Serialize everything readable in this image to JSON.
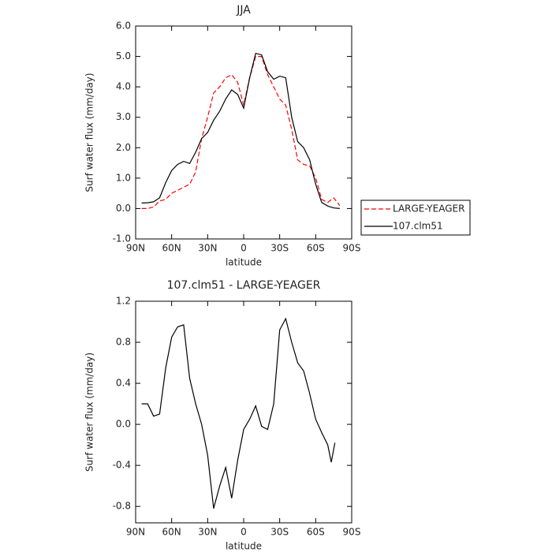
{
  "chart_data": [
    {
      "type": "line",
      "title": "JJA",
      "x_label": "latitude",
      "y_label": "Surf water flux (mm/day)",
      "x": [
        85,
        80,
        75,
        70,
        65,
        60,
        55,
        50,
        45,
        40,
        35,
        30,
        25,
        20,
        15,
        10,
        5,
        0,
        -5,
        -10,
        -15,
        -20,
        -25,
        -30,
        -35,
        -40,
        -45,
        -50,
        -55,
        -60,
        -65,
        -70,
        -75,
        -80
      ],
      "series": [
        {
          "name": "LARGE-YEAGER",
          "color": "#ff0000",
          "line_style": "dashed",
          "values": [
            0.0,
            0.0,
            0.05,
            0.25,
            0.3,
            0.5,
            0.6,
            0.7,
            0.8,
            1.2,
            2.3,
            3.0,
            3.8,
            4.0,
            4.3,
            4.4,
            4.15,
            3.4,
            4.3,
            5.0,
            5.0,
            4.4,
            4.0,
            3.6,
            3.4,
            2.6,
            1.6,
            1.45,
            1.4,
            1.0,
            0.3,
            0.2,
            0.35,
            0.1
          ]
        },
        {
          "name": "107.clm51",
          "color": "#000000",
          "line_style": "solid",
          "values": [
            0.18,
            0.19,
            0.22,
            0.35,
            0.85,
            1.25,
            1.45,
            1.55,
            1.48,
            1.85,
            2.3,
            2.5,
            2.9,
            3.2,
            3.6,
            3.9,
            3.75,
            3.3,
            4.3,
            5.1,
            5.05,
            4.5,
            4.25,
            4.35,
            4.3,
            3.0,
            2.2,
            2.0,
            1.6,
            0.8,
            0.2,
            0.08,
            0.02,
            0.0
          ]
        }
      ],
      "xlim": [
        90,
        -90
      ],
      "xticks": [
        {
          "value": 90,
          "label": "90N"
        },
        {
          "value": 60,
          "label": "60N"
        },
        {
          "value": 30,
          "label": "30N"
        },
        0,
        {
          "value": -30,
          "label": "30S"
        },
        {
          "value": -60,
          "label": "60S"
        },
        {
          "value": -90,
          "label": "90S"
        }
      ],
      "ylim": [
        -1,
        6
      ],
      "yticks": [
        {
          "value": -1,
          "label": "-1.0"
        },
        {
          "value": 0,
          "label": "0.0"
        },
        {
          "value": 1,
          "label": "1.0"
        },
        {
          "value": 2,
          "label": "2.0"
        },
        {
          "value": 3,
          "label": "3.0"
        },
        {
          "value": 4,
          "label": "4.0"
        },
        {
          "value": 5,
          "label": "5.0"
        },
        {
          "value": 6,
          "label": "6.0"
        }
      ],
      "grid": false,
      "legend": "right"
    },
    {
      "type": "line",
      "title": "107.clm51 - LARGE-YEAGER",
      "x_label": "latitude",
      "y_label": "Surf water flux (mm/day)",
      "x": [
        85,
        80,
        75,
        70,
        65,
        60,
        55,
        50,
        45,
        40,
        35,
        30,
        25,
        20,
        15,
        10,
        5,
        0,
        -5,
        -10,
        -15,
        -20,
        -25,
        -30,
        -35,
        -40,
        -45,
        -50,
        -55,
        -60,
        -65,
        -70,
        -73,
        -76
      ],
      "color": "#000000",
      "values": [
        0.2,
        0.2,
        0.08,
        0.1,
        0.55,
        0.85,
        0.95,
        0.97,
        0.45,
        0.2,
        0.0,
        -0.3,
        -0.82,
        -0.6,
        -0.42,
        -0.72,
        -0.35,
        -0.05,
        0.05,
        0.18,
        -0.02,
        -0.05,
        0.2,
        0.92,
        1.03,
        0.8,
        0.6,
        0.52,
        0.3,
        0.05,
        -0.08,
        -0.2,
        -0.37,
        -0.18
      ],
      "xlim": [
        90,
        -90
      ],
      "xticks": [
        {
          "value": 90,
          "label": "90N"
        },
        {
          "value": 60,
          "label": "60N"
        },
        {
          "value": 30,
          "label": "30N"
        },
        0,
        {
          "value": -30,
          "label": "30S"
        },
        {
          "value": -60,
          "label": "60S"
        },
        {
          "value": -90,
          "label": "90S"
        }
      ],
      "ylim": [
        -0.96,
        1.2
      ],
      "yticks": [
        -0.8,
        -0.4,
        {
          "value": 0,
          "label": "0.0"
        },
        0.4,
        0.8,
        1.2
      ],
      "grid": false
    }
  ]
}
